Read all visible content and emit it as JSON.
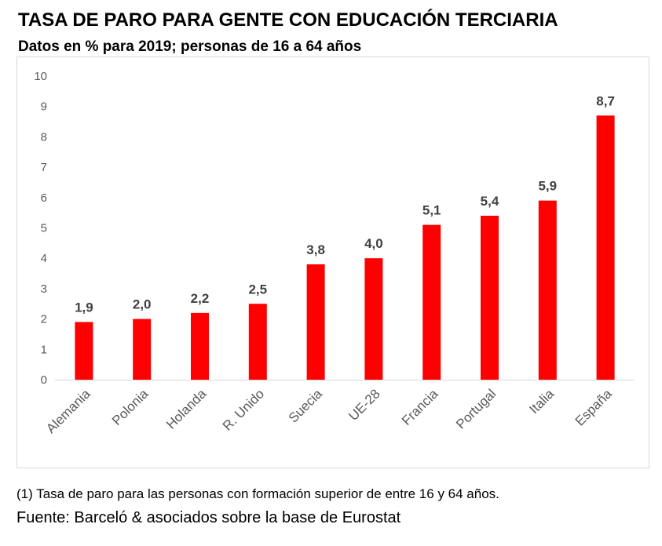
{
  "header": {
    "title": "TASA DE PARO PARA GENTE CON EDUCACIÓN TERCIARIA",
    "subtitle": "Datos en % para 2019; personas de 16 a 64 años"
  },
  "footer": {
    "note": "(1) Tasa de paro para las personas con formación superior de entre 16 y 64 años.",
    "source": "Fuente: Barceló & asociados sobre la base de Eurostat"
  },
  "colors": {
    "bar": "#ff0000",
    "label": "#404040",
    "tick": "#595959",
    "axis": "#d9d9d9"
  },
  "chart_data": {
    "type": "bar",
    "title": "TASA DE PARO PARA GENTE CON EDUCACIÓN TERCIARIA",
    "xlabel": "",
    "ylabel": "",
    "ylim": [
      0,
      10
    ],
    "yticks": [
      0,
      1,
      2,
      3,
      4,
      5,
      6,
      7,
      8,
      9,
      10
    ],
    "grid": false,
    "legend": "none",
    "categories": [
      "Alemania",
      "Polonia",
      "Holanda",
      "R. Unido",
      "Suecia",
      "UE-28",
      "Francia",
      "Portugal",
      "Italia",
      "España"
    ],
    "values": [
      1.9,
      2.0,
      2.2,
      2.5,
      3.8,
      4.0,
      5.1,
      5.4,
      5.9,
      8.7
    ],
    "value_labels": [
      "1,9",
      "2,0",
      "2,2",
      "2,5",
      "3,8",
      "4,0",
      "5,1",
      "5,4",
      "5,9",
      "8,7"
    ]
  }
}
